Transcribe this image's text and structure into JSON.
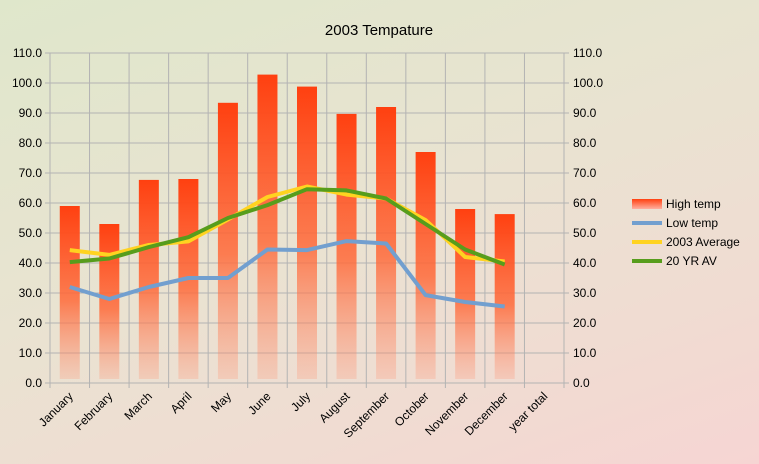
{
  "chart_data": {
    "type": "bar",
    "title": "2003 Tempature",
    "xlabel": "",
    "ylabel": "",
    "ylim": [
      0,
      110
    ],
    "yticks": [
      "0.0",
      "10.0",
      "20.0",
      "30.0",
      "40.0",
      "50.0",
      "60.0",
      "70.0",
      "80.0",
      "90.0",
      "100.0",
      "110.0"
    ],
    "y2ticks": [
      "0.0",
      "10.0",
      "20.0",
      "30.0",
      "40.0",
      "50.0",
      "60.0",
      "70.0",
      "80.0",
      "90.0",
      "100.0",
      "110.0"
    ],
    "grid": true,
    "legend_position": "right",
    "categories": [
      "January",
      "February",
      "March",
      "April",
      "May",
      "June",
      "July",
      "August",
      "September",
      "October",
      "November",
      "December",
      "year total"
    ],
    "series": [
      {
        "name": "High temp",
        "kind": "bar",
        "color": "#ff4010",
        "values": [
          59,
          53,
          67.7,
          68,
          93.4,
          102.8,
          98.8,
          89.7,
          92,
          77,
          58,
          56.3,
          null
        ]
      },
      {
        "name": "Low temp",
        "kind": "line",
        "color": "#729fcf",
        "values": [
          32,
          28,
          32,
          35,
          35,
          44.5,
          44.3,
          47.3,
          46.5,
          29.3,
          27,
          25.5,
          null
        ]
      },
      {
        "name": "2003 Average",
        "kind": "line",
        "color": "#ffd320",
        "values": [
          44.3,
          42.7,
          46,
          47.2,
          54.5,
          62,
          65.5,
          62.8,
          61.5,
          54.3,
          42,
          40.5,
          null
        ]
      },
      {
        "name": "20 YR AV",
        "kind": "line",
        "color": "#579d1c",
        "values": [
          40.3,
          41.5,
          45.3,
          48.6,
          55,
          59.3,
          64.6,
          64.2,
          61.5,
          53,
          44.5,
          39.5,
          null
        ]
      }
    ]
  }
}
